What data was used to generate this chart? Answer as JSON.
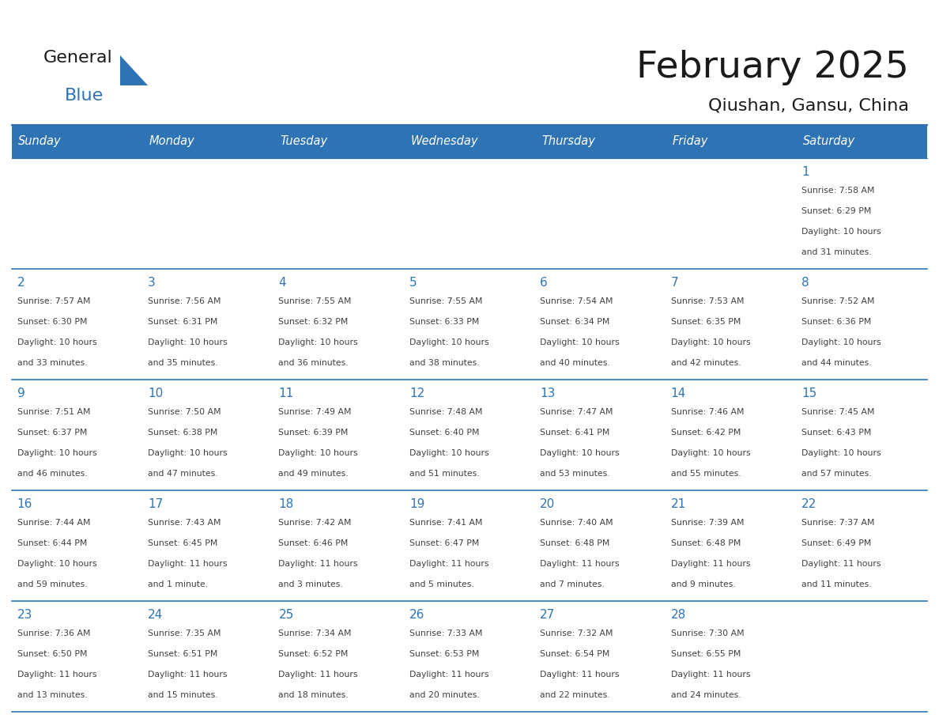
{
  "title": "February 2025",
  "subtitle": "Qiushan, Gansu, China",
  "header_bg": "#2E74B5",
  "header_text_color": "#FFFFFF",
  "cell_bg_all": "#FFFFFF",
  "day_number_color": "#2E74B5",
  "info_text_color": "#404040",
  "border_color": "#2E74B5",
  "days_of_week": [
    "Sunday",
    "Monday",
    "Tuesday",
    "Wednesday",
    "Thursday",
    "Friday",
    "Saturday"
  ],
  "weeks": [
    [
      {
        "day": null
      },
      {
        "day": null
      },
      {
        "day": null
      },
      {
        "day": null
      },
      {
        "day": null
      },
      {
        "day": null
      },
      {
        "day": 1,
        "sunrise": "7:58 AM",
        "sunset": "6:29 PM",
        "daylight": "10 hours and 31 minutes."
      }
    ],
    [
      {
        "day": 2,
        "sunrise": "7:57 AM",
        "sunset": "6:30 PM",
        "daylight": "10 hours and 33 minutes."
      },
      {
        "day": 3,
        "sunrise": "7:56 AM",
        "sunset": "6:31 PM",
        "daylight": "10 hours and 35 minutes."
      },
      {
        "day": 4,
        "sunrise": "7:55 AM",
        "sunset": "6:32 PM",
        "daylight": "10 hours and 36 minutes."
      },
      {
        "day": 5,
        "sunrise": "7:55 AM",
        "sunset": "6:33 PM",
        "daylight": "10 hours and 38 minutes."
      },
      {
        "day": 6,
        "sunrise": "7:54 AM",
        "sunset": "6:34 PM",
        "daylight": "10 hours and 40 minutes."
      },
      {
        "day": 7,
        "sunrise": "7:53 AM",
        "sunset": "6:35 PM",
        "daylight": "10 hours and 42 minutes."
      },
      {
        "day": 8,
        "sunrise": "7:52 AM",
        "sunset": "6:36 PM",
        "daylight": "10 hours and 44 minutes."
      }
    ],
    [
      {
        "day": 9,
        "sunrise": "7:51 AM",
        "sunset": "6:37 PM",
        "daylight": "10 hours and 46 minutes."
      },
      {
        "day": 10,
        "sunrise": "7:50 AM",
        "sunset": "6:38 PM",
        "daylight": "10 hours and 47 minutes."
      },
      {
        "day": 11,
        "sunrise": "7:49 AM",
        "sunset": "6:39 PM",
        "daylight": "10 hours and 49 minutes."
      },
      {
        "day": 12,
        "sunrise": "7:48 AM",
        "sunset": "6:40 PM",
        "daylight": "10 hours and 51 minutes."
      },
      {
        "day": 13,
        "sunrise": "7:47 AM",
        "sunset": "6:41 PM",
        "daylight": "10 hours and 53 minutes."
      },
      {
        "day": 14,
        "sunrise": "7:46 AM",
        "sunset": "6:42 PM",
        "daylight": "10 hours and 55 minutes."
      },
      {
        "day": 15,
        "sunrise": "7:45 AM",
        "sunset": "6:43 PM",
        "daylight": "10 hours and 57 minutes."
      }
    ],
    [
      {
        "day": 16,
        "sunrise": "7:44 AM",
        "sunset": "6:44 PM",
        "daylight": "10 hours and 59 minutes."
      },
      {
        "day": 17,
        "sunrise": "7:43 AM",
        "sunset": "6:45 PM",
        "daylight": "11 hours and 1 minute."
      },
      {
        "day": 18,
        "sunrise": "7:42 AM",
        "sunset": "6:46 PM",
        "daylight": "11 hours and 3 minutes."
      },
      {
        "day": 19,
        "sunrise": "7:41 AM",
        "sunset": "6:47 PM",
        "daylight": "11 hours and 5 minutes."
      },
      {
        "day": 20,
        "sunrise": "7:40 AM",
        "sunset": "6:48 PM",
        "daylight": "11 hours and 7 minutes."
      },
      {
        "day": 21,
        "sunrise": "7:39 AM",
        "sunset": "6:48 PM",
        "daylight": "11 hours and 9 minutes."
      },
      {
        "day": 22,
        "sunrise": "7:37 AM",
        "sunset": "6:49 PM",
        "daylight": "11 hours and 11 minutes."
      }
    ],
    [
      {
        "day": 23,
        "sunrise": "7:36 AM",
        "sunset": "6:50 PM",
        "daylight": "11 hours and 13 minutes."
      },
      {
        "day": 24,
        "sunrise": "7:35 AM",
        "sunset": "6:51 PM",
        "daylight": "11 hours and 15 minutes."
      },
      {
        "day": 25,
        "sunrise": "7:34 AM",
        "sunset": "6:52 PM",
        "daylight": "11 hours and 18 minutes."
      },
      {
        "day": 26,
        "sunrise": "7:33 AM",
        "sunset": "6:53 PM",
        "daylight": "11 hours and 20 minutes."
      },
      {
        "day": 27,
        "sunrise": "7:32 AM",
        "sunset": "6:54 PM",
        "daylight": "11 hours and 22 minutes."
      },
      {
        "day": 28,
        "sunrise": "7:30 AM",
        "sunset": "6:55 PM",
        "daylight": "11 hours and 24 minutes."
      },
      {
        "day": null
      }
    ]
  ]
}
